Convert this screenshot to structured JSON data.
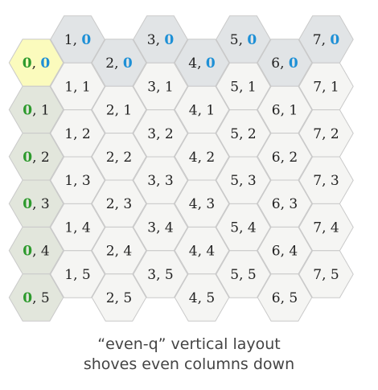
{
  "grid": {
    "columns": 8,
    "rows": 6,
    "label_separator": ", ",
    "layout": "even-q",
    "colors": {
      "origin_fill": "#fbfbbd",
      "top_row_fill": "#e1e4e6",
      "left_col_fill": "#e2e6dc",
      "cell_fill": "#f5f5f3",
      "stroke": "#c9c9c9",
      "text": "#222222",
      "row_zero_highlight": "#1e90d6",
      "col_zero_highlight": "#2d9a2d"
    }
  },
  "caption": {
    "line1": "“even-q” vertical layout",
    "line2": "shoves even columns down"
  }
}
